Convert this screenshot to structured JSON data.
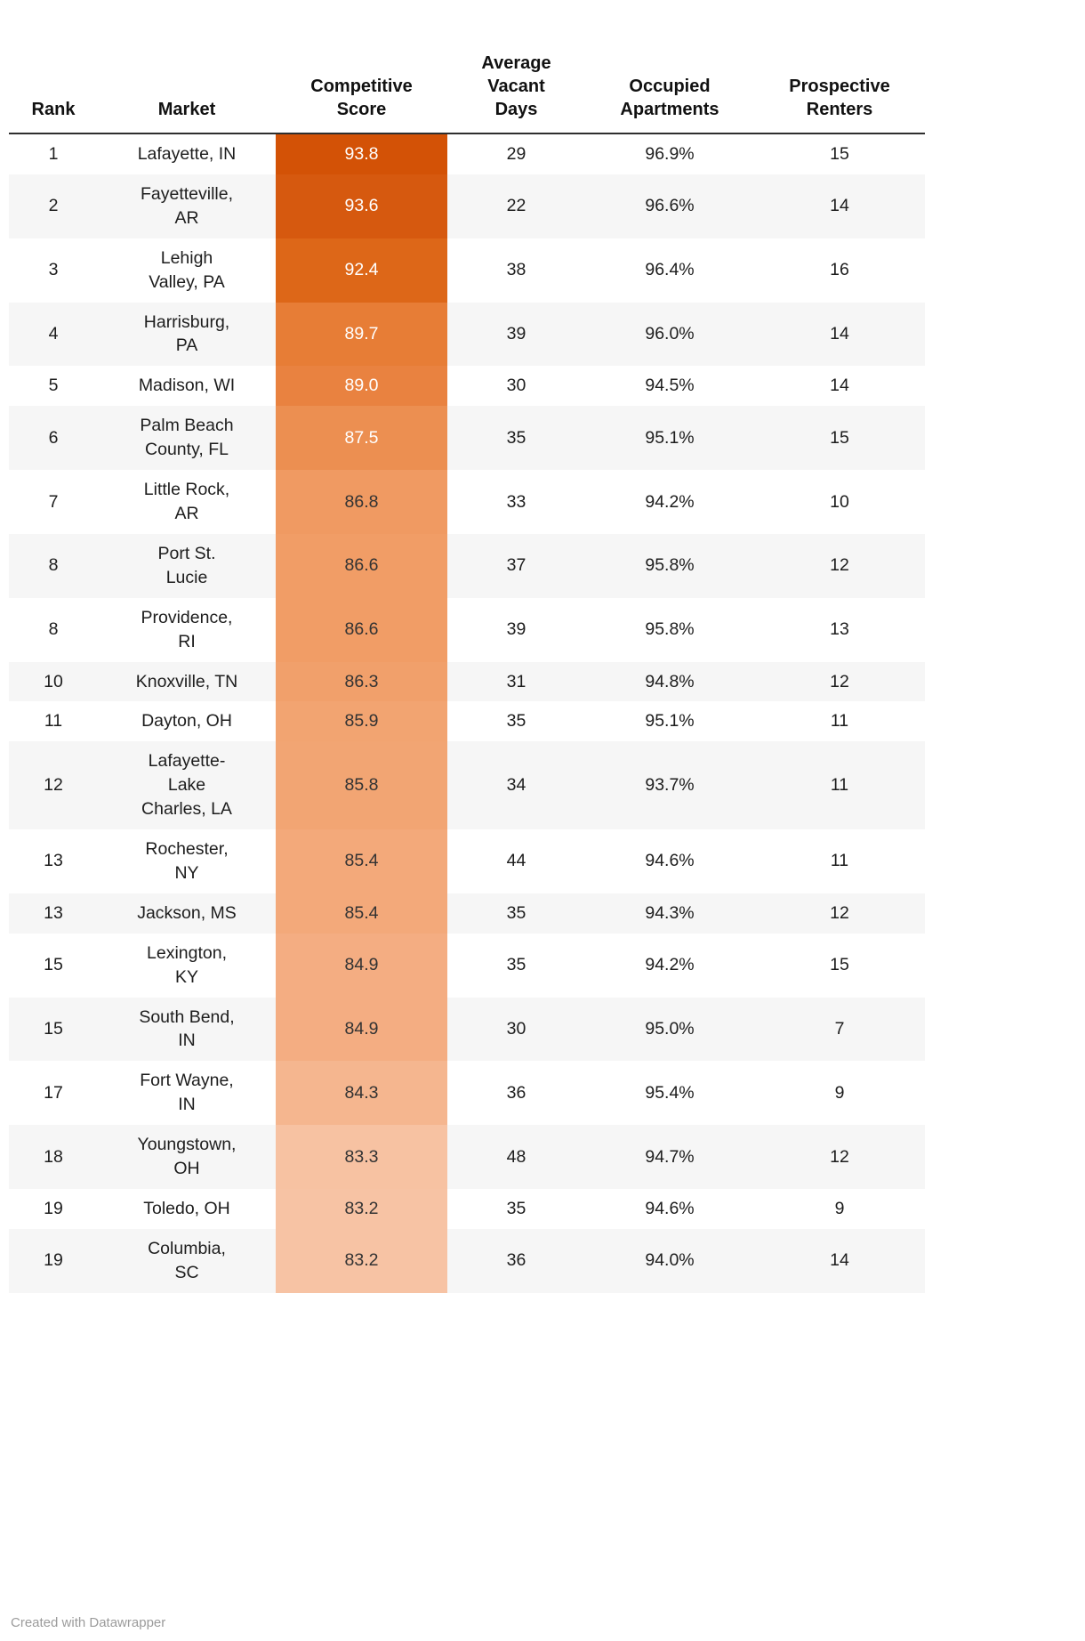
{
  "header": {
    "labels": {
      "rank": "Rank",
      "market": "Market",
      "score": "Competitive\nScore",
      "vacant": "Average\nVacant\nDays",
      "occupied": "Occupied\nApartments",
      "renters": "Prospective\nRenters"
    }
  },
  "chart_data": {
    "type": "table",
    "columns": [
      "Rank",
      "Market",
      "Competitive Score",
      "Average Vacant Days",
      "Occupied Apartments",
      "Prospective Renters"
    ],
    "score_color_scale": {
      "min_score": 83.2,
      "max_score": 93.8,
      "dark_end": "#d35206",
      "light_end": "#f7c3a4"
    },
    "rows": [
      {
        "rank": "1",
        "market": "Lafayette, IN",
        "score": "93.8",
        "vacant_days": "29",
        "occupied": "96.9%",
        "renters": "15",
        "score_bg": "#d35206",
        "score_fg": "#ffffff"
      },
      {
        "rank": "2",
        "market": "Fayetteville,\nAR",
        "score": "93.6",
        "vacant_days": "22",
        "occupied": "96.6%",
        "renters": "14",
        "score_bg": "#d6590f",
        "score_fg": "#ffffff"
      },
      {
        "rank": "3",
        "market": "Lehigh\nValley, PA",
        "score": "92.4",
        "vacant_days": "38",
        "occupied": "96.4%",
        "renters": "16",
        "score_bg": "#dd6718",
        "score_fg": "#ffffff"
      },
      {
        "rank": "4",
        "market": "Harrisburg,\nPA",
        "score": "89.7",
        "vacant_days": "39",
        "occupied": "96.0%",
        "renters": "14",
        "score_bg": "#e77d36",
        "score_fg": "#ffffff"
      },
      {
        "rank": "5",
        "market": "Madison, WI",
        "score": "89.0",
        "vacant_days": "30",
        "occupied": "94.5%",
        "renters": "14",
        "score_bg": "#e98240",
        "score_fg": "#ffffff"
      },
      {
        "rank": "6",
        "market": "Palm Beach\nCounty, FL",
        "score": "87.5",
        "vacant_days": "35",
        "occupied": "95.1%",
        "renters": "15",
        "score_bg": "#ec8f51",
        "score_fg": "#ffffff"
      },
      {
        "rank": "7",
        "market": "Little Rock,\nAR",
        "score": "86.8",
        "vacant_days": "33",
        "occupied": "94.2%",
        "renters": "10",
        "score_bg": "#f09a62",
        "score_fg": "#333333"
      },
      {
        "rank": "8",
        "market": "Port St.\nLucie",
        "score": "86.6",
        "vacant_days": "37",
        "occupied": "95.8%",
        "renters": "12",
        "score_bg": "#f19d66",
        "score_fg": "#333333"
      },
      {
        "rank": "8",
        "market": "Providence,\nRI",
        "score": "86.6",
        "vacant_days": "39",
        "occupied": "95.8%",
        "renters": "13",
        "score_bg": "#f19d66",
        "score_fg": "#333333"
      },
      {
        "rank": "10",
        "market": "Knoxville, TN",
        "score": "86.3",
        "vacant_days": "31",
        "occupied": "94.8%",
        "renters": "12",
        "score_bg": "#f1a06b",
        "score_fg": "#333333"
      },
      {
        "rank": "11",
        "market": "Dayton, OH",
        "score": "85.9",
        "vacant_days": "35",
        "occupied": "95.1%",
        "renters": "11",
        "score_bg": "#f2a471",
        "score_fg": "#333333"
      },
      {
        "rank": "12",
        "market": "Lafayette-\nLake\nCharles, LA",
        "score": "85.8",
        "vacant_days": "34",
        "occupied": "93.7%",
        "renters": "11",
        "score_bg": "#f2a573",
        "score_fg": "#333333"
      },
      {
        "rank": "13",
        "market": "Rochester,\nNY",
        "score": "85.4",
        "vacant_days": "44",
        "occupied": "94.6%",
        "renters": "11",
        "score_bg": "#f3a97a",
        "score_fg": "#333333"
      },
      {
        "rank": "13",
        "market": "Jackson, MS",
        "score": "85.4",
        "vacant_days": "35",
        "occupied": "94.3%",
        "renters": "12",
        "score_bg": "#f3a97a",
        "score_fg": "#333333"
      },
      {
        "rank": "15",
        "market": "Lexington,\nKY",
        "score": "84.9",
        "vacant_days": "35",
        "occupied": "94.2%",
        "renters": "15",
        "score_bg": "#f4ad82",
        "score_fg": "#333333"
      },
      {
        "rank": "15",
        "market": "South Bend,\nIN",
        "score": "84.9",
        "vacant_days": "30",
        "occupied": "95.0%",
        "renters": "7",
        "score_bg": "#f4ad82",
        "score_fg": "#333333"
      },
      {
        "rank": "17",
        "market": "Fort Wayne,\nIN",
        "score": "84.3",
        "vacant_days": "36",
        "occupied": "95.4%",
        "renters": "9",
        "score_bg": "#f5b68f",
        "score_fg": "#333333"
      },
      {
        "rank": "18",
        "market": "Youngstown,\nOH",
        "score": "83.3",
        "vacant_days": "48",
        "occupied": "94.7%",
        "renters": "12",
        "score_bg": "#f7c2a2",
        "score_fg": "#333333"
      },
      {
        "rank": "19",
        "market": "Toledo, OH",
        "score": "83.2",
        "vacant_days": "35",
        "occupied": "94.6%",
        "renters": "9",
        "score_bg": "#f7c3a4",
        "score_fg": "#333333"
      },
      {
        "rank": "19",
        "market": "Columbia,\nSC",
        "score": "83.2",
        "vacant_days": "36",
        "occupied": "94.0%",
        "renters": "14",
        "score_bg": "#f7c3a4",
        "score_fg": "#333333"
      }
    ]
  },
  "footer": {
    "credit": "Created with Datawrapper"
  },
  "colors": {
    "header_border": "#2e2e2e",
    "zebra_stripe": "#f6f6f6",
    "score_text_light": "#ffffff",
    "score_text_dark": "#333333",
    "credit_text": "#9b9b9b"
  }
}
